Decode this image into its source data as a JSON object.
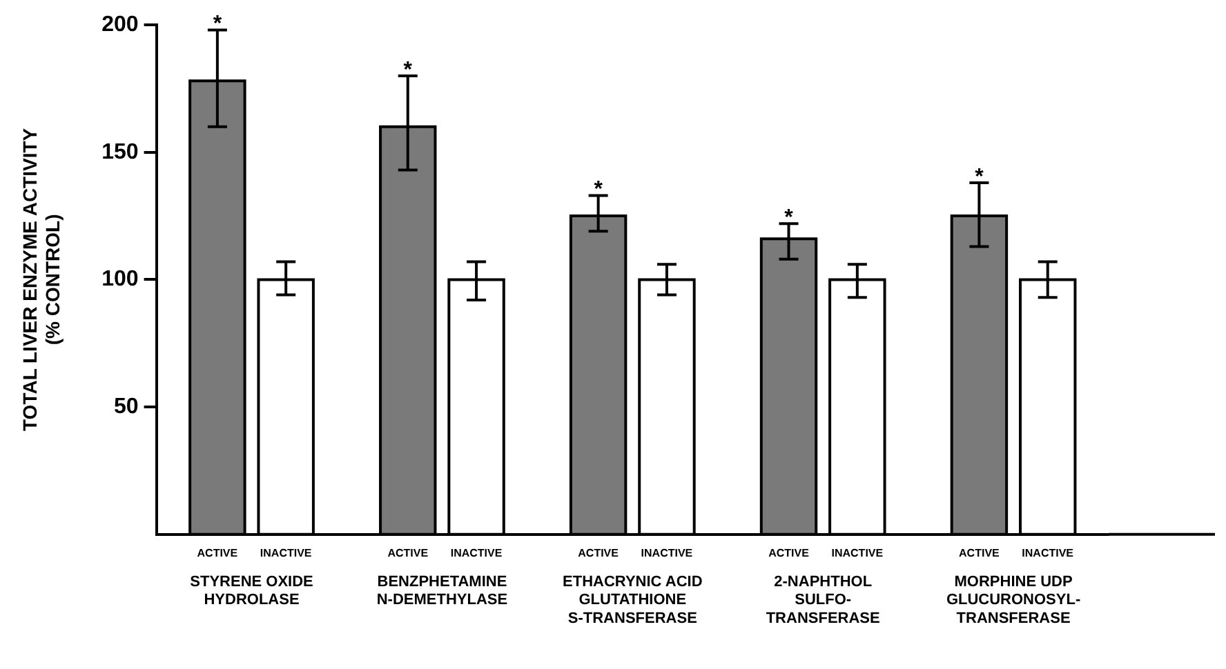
{
  "chart_data": {
    "type": "bar",
    "ylabel": "TOTAL LIVER ENZYME ACTIVITY\n(% CONTROL)",
    "categories": [
      "STYRENE OXIDE\nHYDROLASE",
      "BENZPHETAMINE\nN-DEMETHYLASE",
      "ETHACRYNIC ACID\nGLUTATHIONE\nS-TRANSFERASE",
      "2-NAPHTHOL\nSULFO-\nTRANSFERASE",
      "MORPHINE UDP\nGLUCURONOSYL-\nTRANSFERASE"
    ],
    "series": [
      {
        "name": "ACTIVE",
        "color": "#7a7a7a",
        "values": [
          178,
          160,
          125,
          116,
          125
        ],
        "errors": [
          [
            160,
            198
          ],
          [
            143,
            180
          ],
          [
            119,
            133
          ],
          [
            108,
            122
          ],
          [
            113,
            138
          ]
        ],
        "value_labels": [
          "*",
          "*",
          "*",
          "*",
          "*"
        ]
      },
      {
        "name": "INACTIVE",
        "color": "#ffffff",
        "values": [
          100,
          100,
          100,
          100,
          100
        ],
        "errors": [
          [
            94,
            107
          ],
          [
            92,
            107
          ],
          [
            94,
            106
          ],
          [
            93,
            106
          ],
          [
            93,
            107
          ]
        ]
      }
    ],
    "ylim": [
      0,
      200
    ],
    "yticks": [
      50,
      100,
      150,
      200
    ]
  }
}
